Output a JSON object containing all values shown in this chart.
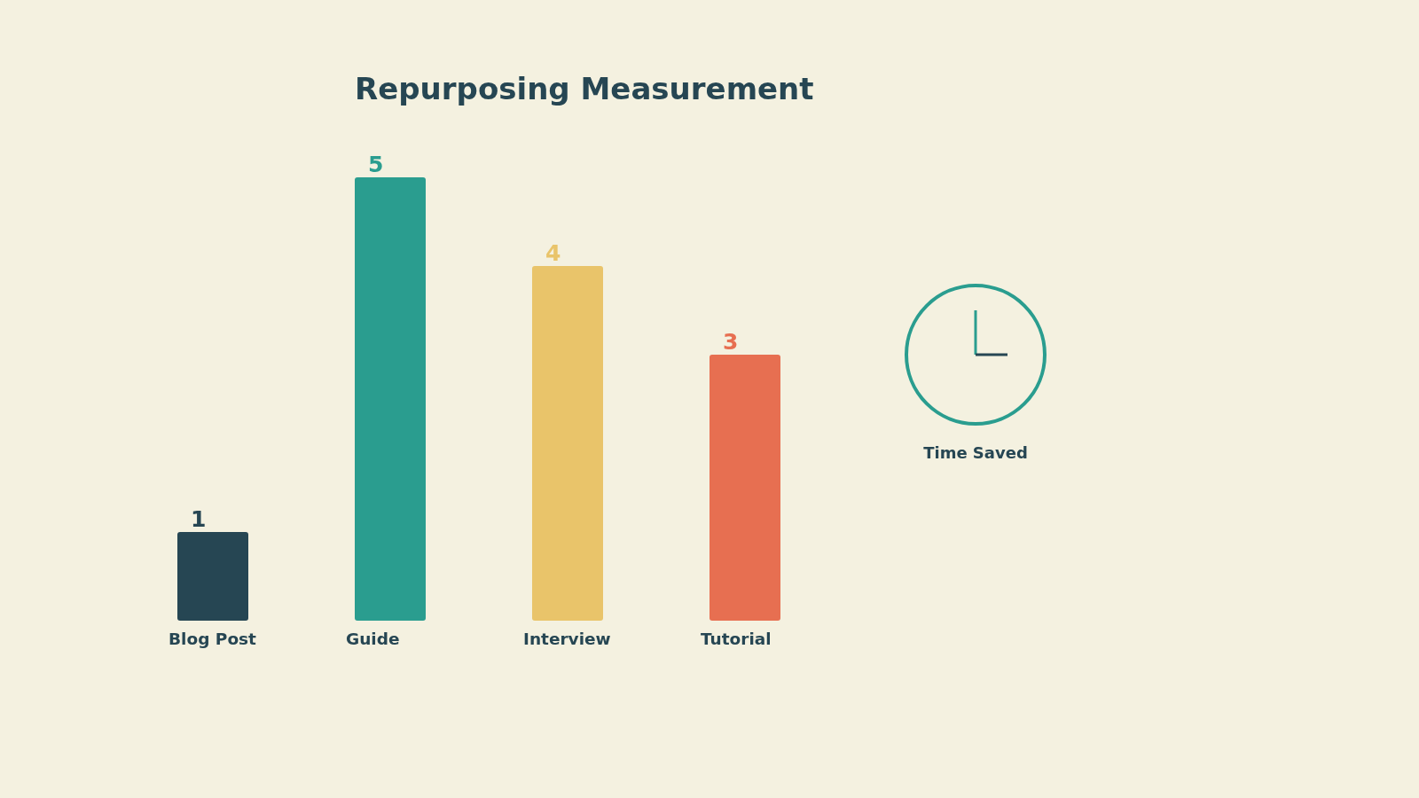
{
  "chart_data": {
    "type": "bar",
    "title": "Repurposing Measurement",
    "categories": [
      "Blog Post",
      "Guide",
      "Interview",
      "Tutorial"
    ],
    "values": [
      1,
      5,
      4,
      3
    ],
    "colors": [
      "#264653",
      "#2a9d8f",
      "#e9c46a",
      "#e76f51"
    ],
    "data_labels": true,
    "annotations": [
      "Time Saved"
    ]
  }
}
